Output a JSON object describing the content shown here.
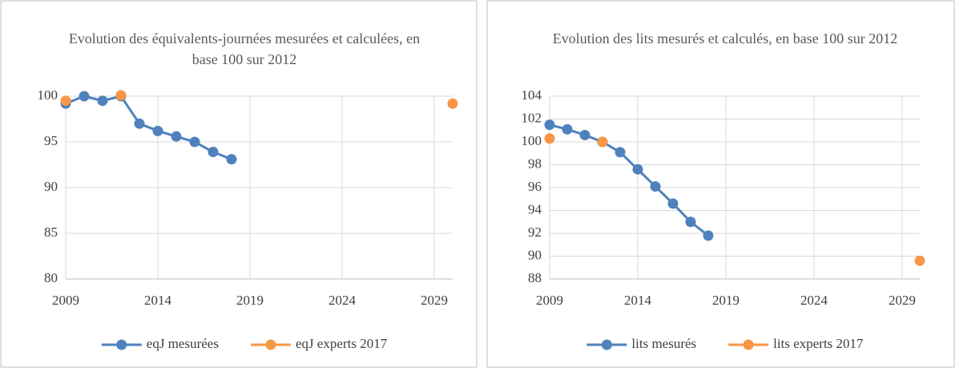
{
  "chart_data": [
    {
      "type": "line",
      "title": "Evolution  des équivalents-journées  mesurées et calculées, en base 100 sur 2012",
      "x": [
        2009,
        2010,
        2011,
        2012,
        2013,
        2014,
        2015,
        2016,
        2017,
        2018,
        2019,
        2020,
        2021,
        2022,
        2023,
        2024,
        2025,
        2026,
        2027,
        2028,
        2029,
        2030
      ],
      "series": [
        {
          "name": "eqJ mesurées",
          "color": "#4f81bd",
          "values": [
            99.2,
            100,
            99.5,
            100,
            97,
            96.2,
            95.6,
            95,
            93.9,
            93.1,
            null,
            null,
            null,
            null,
            null,
            null,
            null,
            null,
            null,
            null,
            null,
            null
          ]
        },
        {
          "name": "eqJ experts 2017",
          "color": "#f79646",
          "values": [
            99.5,
            null,
            null,
            100.1,
            null,
            null,
            null,
            null,
            null,
            null,
            null,
            null,
            null,
            null,
            null,
            null,
            null,
            null,
            null,
            null,
            null,
            99.2
          ]
        }
      ],
      "xlim": [
        2009,
        2030
      ],
      "xticks": [
        2009,
        2014,
        2019,
        2024,
        2029
      ],
      "ylim": [
        80,
        100
      ],
      "yticks": [
        80,
        85,
        90,
        95,
        100
      ],
      "grid": true,
      "legend": "bottom"
    },
    {
      "type": "line",
      "title": "Evolution  des lits mesurés et calculés, en base 100 sur 2012",
      "x": [
        2009,
        2010,
        2011,
        2012,
        2013,
        2014,
        2015,
        2016,
        2017,
        2018,
        2019,
        2020,
        2021,
        2022,
        2023,
        2024,
        2025,
        2026,
        2027,
        2028,
        2029,
        2030
      ],
      "series": [
        {
          "name": "lits mesurés",
          "color": "#4f81bd",
          "values": [
            101.5,
            101.1,
            100.6,
            100,
            99.1,
            97.6,
            96.1,
            94.6,
            93,
            91.8,
            null,
            null,
            null,
            null,
            null,
            null,
            null,
            null,
            null,
            null,
            null,
            null
          ]
        },
        {
          "name": "lits experts 2017",
          "color": "#f79646",
          "values": [
            100.3,
            null,
            null,
            100,
            null,
            null,
            null,
            null,
            null,
            null,
            null,
            null,
            null,
            null,
            null,
            null,
            null,
            null,
            null,
            null,
            null,
            89.6
          ]
        }
      ],
      "xlim": [
        2009,
        2030
      ],
      "xticks": [
        2009,
        2014,
        2019,
        2024,
        2029
      ],
      "ylim": [
        88,
        104
      ],
      "yticks": [
        88,
        90,
        92,
        94,
        96,
        98,
        100,
        102,
        104
      ],
      "grid": true,
      "legend": "bottom"
    }
  ]
}
